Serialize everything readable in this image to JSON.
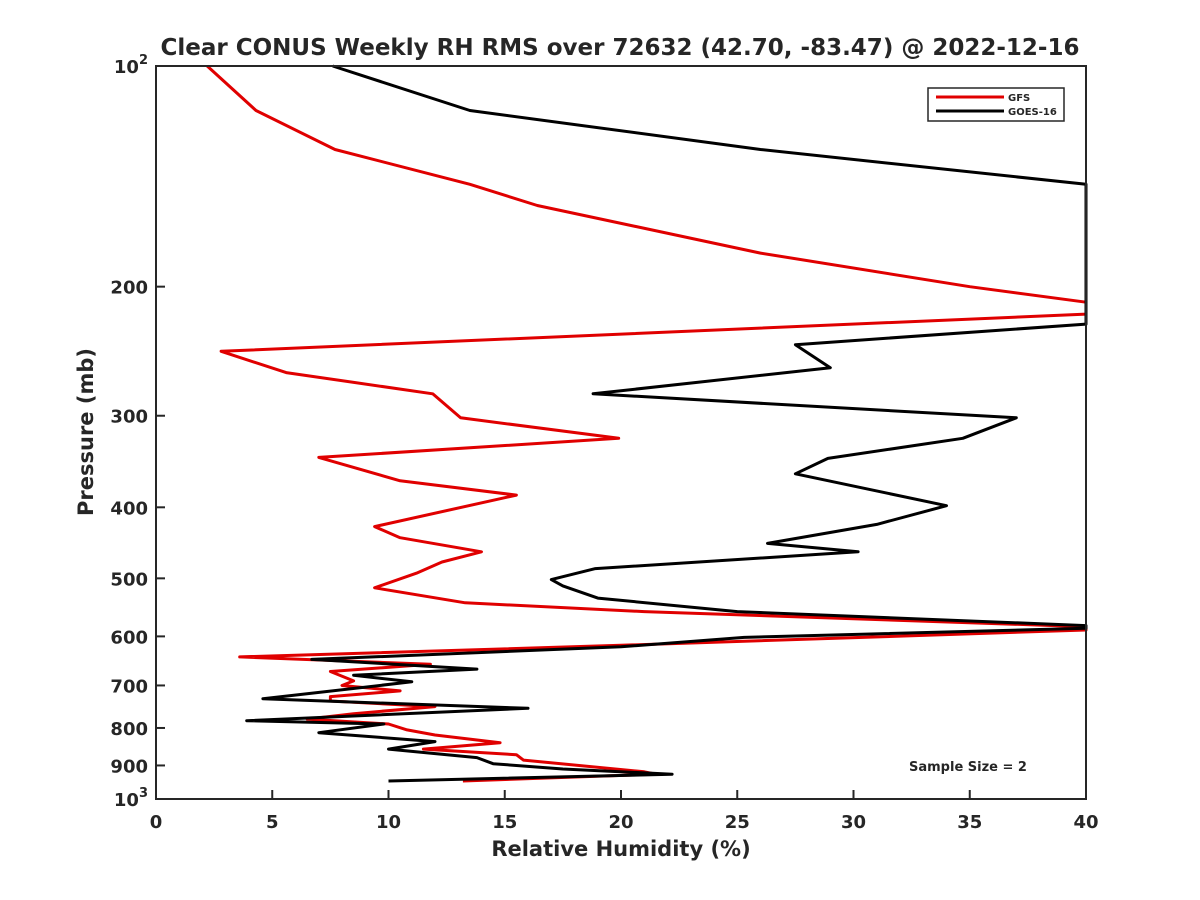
{
  "chart_data": {
    "type": "line",
    "title": "Clear CONUS Weekly RH RMS over 72632 (42.70, -83.47) @ 2022-12-16",
    "xlabel": "Relative Humidity (%)",
    "ylabel": "Pressure (mb)",
    "xlim": [
      0,
      40
    ],
    "ylim": [
      100,
      1000
    ],
    "yscale": "log",
    "y_reversed": true,
    "x_ticks": [
      0,
      5,
      10,
      15,
      20,
      25,
      30,
      35,
      40
    ],
    "x_tick_labels": [
      "0",
      "5",
      "10",
      "15",
      "20",
      "25",
      "30",
      "35",
      "40"
    ],
    "y_ticks": [
      100,
      200,
      300,
      400,
      500,
      600,
      700,
      800,
      900,
      1000
    ],
    "y_tick_labels": [
      {
        "base": "10",
        "exp": "2"
      },
      {
        "base": "200",
        "exp": ""
      },
      {
        "base": "300",
        "exp": ""
      },
      {
        "base": "400",
        "exp": ""
      },
      {
        "base": "500",
        "exp": ""
      },
      {
        "base": "600",
        "exp": ""
      },
      {
        "base": "700",
        "exp": ""
      },
      {
        "base": "800",
        "exp": ""
      },
      {
        "base": "900",
        "exp": ""
      },
      {
        "base": "10",
        "exp": "3"
      }
    ],
    "grid": false,
    "legend_position": "top-right",
    "annotation": "Sample Size = 2",
    "series": [
      {
        "name": "GFS",
        "color": "#e00000",
        "points": [
          [
            2.2,
            100
          ],
          [
            4.3,
            115
          ],
          [
            7.7,
            130
          ],
          [
            13.5,
            145
          ],
          [
            16.4,
            155
          ],
          [
            26.0,
            180
          ],
          [
            35.0,
            200
          ],
          [
            40.0,
            210
          ],
          [
            40.0,
            218
          ],
          [
            2.8,
            245
          ],
          [
            5.6,
            262
          ],
          [
            11.9,
            280
          ],
          [
            13.1,
            302
          ],
          [
            19.9,
            322
          ],
          [
            7.0,
            342
          ],
          [
            10.5,
            368
          ],
          [
            15.5,
            385
          ],
          [
            9.4,
            425
          ],
          [
            10.5,
            440
          ],
          [
            14.0,
            460
          ],
          [
            12.3,
            475
          ],
          [
            11.2,
            492
          ],
          [
            9.4,
            515
          ],
          [
            13.3,
            540
          ],
          [
            21.0,
            555
          ],
          [
            40.0,
            582
          ],
          [
            40.0,
            588
          ],
          [
            20.0,
            617
          ],
          [
            3.6,
            640
          ],
          [
            11.8,
            655
          ],
          [
            7.5,
            670
          ],
          [
            8.5,
            690
          ],
          [
            8.0,
            700
          ],
          [
            10.5,
            712
          ],
          [
            7.5,
            725
          ],
          [
            7.5,
            735
          ],
          [
            12.0,
            748
          ],
          [
            8.5,
            765
          ],
          [
            6.5,
            778
          ],
          [
            10.0,
            790
          ],
          [
            10.8,
            805
          ],
          [
            12.0,
            818
          ],
          [
            14.8,
            838
          ],
          [
            11.5,
            855
          ],
          [
            15.5,
            870
          ],
          [
            15.8,
            885
          ],
          [
            21.0,
            918
          ],
          [
            21.5,
            925
          ],
          [
            13.2,
            945
          ]
        ]
      },
      {
        "name": "GOES-16",
        "color": "#000000",
        "points": [
          [
            7.6,
            100
          ],
          [
            13.5,
            115
          ],
          [
            26.0,
            130
          ],
          [
            40.0,
            145
          ],
          [
            40.0,
            225
          ],
          [
            27.5,
            240
          ],
          [
            29.0,
            258
          ],
          [
            18.8,
            280
          ],
          [
            37.0,
            302
          ],
          [
            34.7,
            322
          ],
          [
            28.9,
            343
          ],
          [
            27.5,
            360
          ],
          [
            34.0,
            398
          ],
          [
            31.0,
            422
          ],
          [
            26.3,
            448
          ],
          [
            30.2,
            460
          ],
          [
            18.9,
            485
          ],
          [
            17.0,
            502
          ],
          [
            17.5,
            512
          ],
          [
            19.0,
            532
          ],
          [
            25.0,
            555
          ],
          [
            40.0,
            580
          ],
          [
            40.0,
            585
          ],
          [
            25.3,
            602
          ],
          [
            20.0,
            620
          ],
          [
            6.7,
            645
          ],
          [
            13.8,
            665
          ],
          [
            8.5,
            678
          ],
          [
            11.0,
            692
          ],
          [
            4.6,
            730
          ],
          [
            16.0,
            752
          ],
          [
            3.9,
            782
          ],
          [
            9.8,
            790
          ],
          [
            7.0,
            812
          ],
          [
            12.0,
            835
          ],
          [
            10.0,
            855
          ],
          [
            13.8,
            878
          ],
          [
            14.5,
            895
          ],
          [
            17.5,
            910
          ],
          [
            22.2,
            925
          ],
          [
            10.0,
            945
          ]
        ]
      }
    ]
  }
}
